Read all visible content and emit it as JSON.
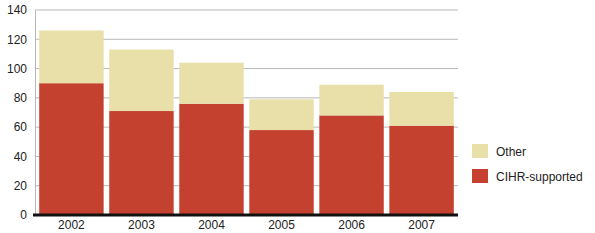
{
  "chart_data": {
    "type": "bar",
    "stacked": true,
    "categories": [
      "2002",
      "2003",
      "2004",
      "2005",
      "2006",
      "2007"
    ],
    "series": [
      {
        "name": "CIHR-supported",
        "color": "#c4402f",
        "values": [
          90,
          71,
          76,
          58,
          68,
          61
        ]
      },
      {
        "name": "Other",
        "color": "#e8e0a8",
        "values": [
          36,
          42,
          28,
          21,
          21,
          23
        ]
      }
    ],
    "ylim": [
      0,
      140
    ],
    "yticks": [
      0,
      20,
      40,
      60,
      80,
      100,
      120,
      140
    ],
    "grid": true,
    "legend": "right"
  }
}
